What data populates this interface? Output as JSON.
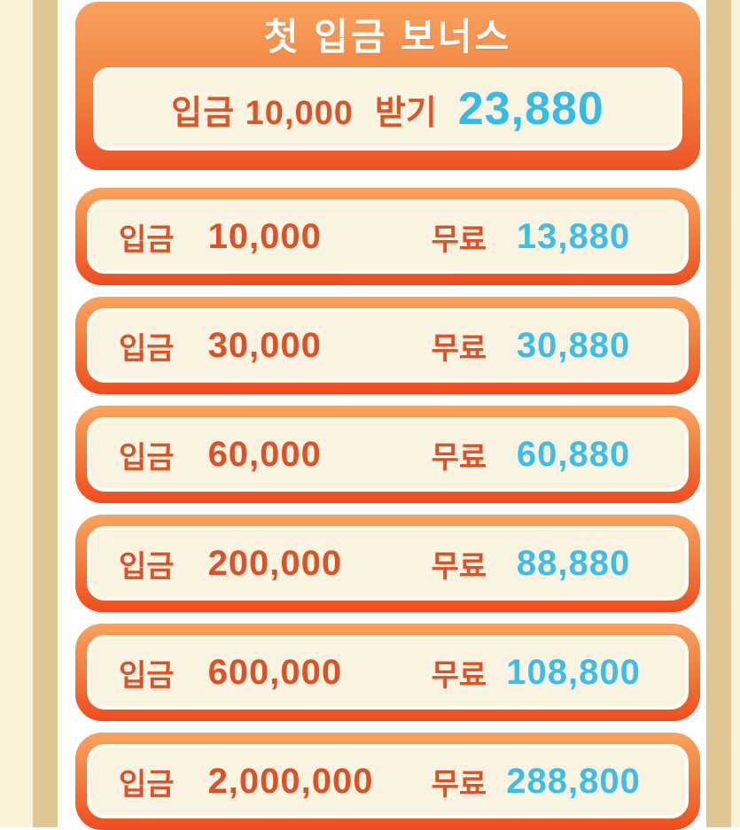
{
  "header": {
    "title": "첫 입금 보너스",
    "deposit_text": "입금 10,000",
    "claim_label": "받기",
    "bonus_value": "23,880"
  },
  "rows": [
    {
      "deposit_label": "입금",
      "amount": "10,000",
      "free_label": "무료",
      "value": "13,880"
    },
    {
      "deposit_label": "입금",
      "amount": "30,000",
      "free_label": "무료",
      "value": "30,880"
    },
    {
      "deposit_label": "입금",
      "amount": "60,000",
      "free_label": "무료",
      "value": "60,880"
    },
    {
      "deposit_label": "입금",
      "amount": "200,000",
      "free_label": "무료",
      "value": "88,880"
    },
    {
      "deposit_label": "입금",
      "amount": "600,000",
      "free_label": "무료",
      "value": "108,800"
    },
    {
      "deposit_label": "입금",
      "amount": "2,000,000",
      "free_label": "무료",
      "value": "288,800"
    }
  ],
  "colors": {
    "side_cream": "#FBF3D9",
    "side_tan": "#DFC794",
    "content_background": "#FFFFFF",
    "card_gradient_top": "#F9A15E",
    "card_gradient_bottom": "#EF4B20",
    "card_inner_fill": "#FAF3E2",
    "deposit_text": "#DC5226",
    "bonus_value_text": "#3CBEE8",
    "title_text": "#FFFFFF"
  }
}
